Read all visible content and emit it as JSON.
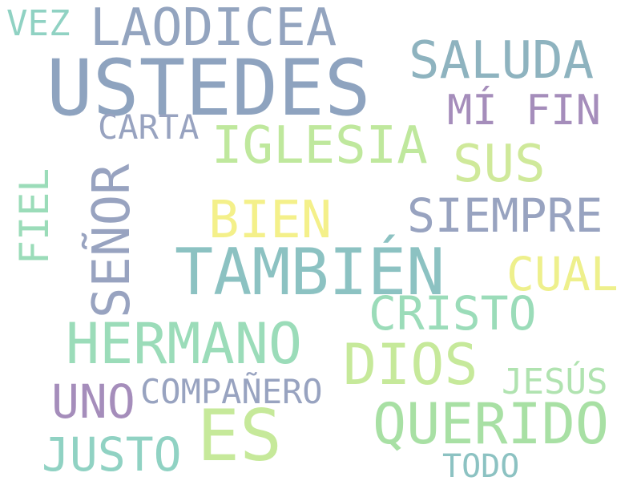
{
  "colors": {
    "background": "#ffffff",
    "slate_blue": "#8ea3bf",
    "steel_blue": "#93a4bf",
    "periwinkle": "#98a3c0",
    "teal": "#8cc2c2",
    "aqua": "#90d2c3",
    "mint": "#9bdcb9",
    "green": "#a8e0a4",
    "lime": "#c6e99a",
    "yellow_green": "#dceb97",
    "yellow": "#f4f08a",
    "mauve": "#a58dbb"
  },
  "words": {
    "vez": {
      "text": "VEZ",
      "color": "#90d2c3"
    },
    "laodicea": {
      "text": "LAODICEA",
      "color": "#93a4bf"
    },
    "ustedes": {
      "text": "USTEDES",
      "color": "#8ea3bf"
    },
    "saluda": {
      "text": "SALUDA",
      "color": "#8eb3bf"
    },
    "mi": {
      "text": "MÍ",
      "color": "#a58dbb"
    },
    "fin": {
      "text": "FIN",
      "color": "#a58dbb"
    },
    "carta": {
      "text": "CARTA",
      "color": "#98a3c0"
    },
    "iglesia": {
      "text": "IGLESIA",
      "color": "#bfe89d"
    },
    "sus": {
      "text": "SUS",
      "color": "#cfe99a"
    },
    "fiel": {
      "text": "FIEL",
      "color": "#9bdcb9"
    },
    "senor": {
      "text": "SEÑOR",
      "color": "#98a3c0"
    },
    "bien": {
      "text": "BIEN",
      "color": "#f4f08a"
    },
    "siempre": {
      "text": "SIEMPRE",
      "color": "#98a3c0"
    },
    "tambien": {
      "text": "TAMBIÉN",
      "color": "#8cc2c2"
    },
    "cual": {
      "text": "CUAL",
      "color": "#eef08c"
    },
    "cristo": {
      "text": "CRISTO",
      "color": "#9bdcb9"
    },
    "hermano": {
      "text": "HERMANO",
      "color": "#9bdcb9"
    },
    "dios": {
      "text": "DIOS",
      "color": "#c6e99a"
    },
    "jesus": {
      "text": "JESÚS",
      "color": "#b0e3b0"
    },
    "uno": {
      "text": "UNO",
      "color": "#a58dbb"
    },
    "companero": {
      "text": "COMPAÑERO",
      "color": "#98a3c0"
    },
    "es": {
      "text": "ES",
      "color": "#c6e99a"
    },
    "querido": {
      "text": "QUERIDO",
      "color": "#a8e0a4"
    },
    "justo": {
      "text": "JUSTO",
      "color": "#90d2c3"
    },
    "todo": {
      "text": "TODO",
      "color": "#8cc2c2"
    }
  }
}
